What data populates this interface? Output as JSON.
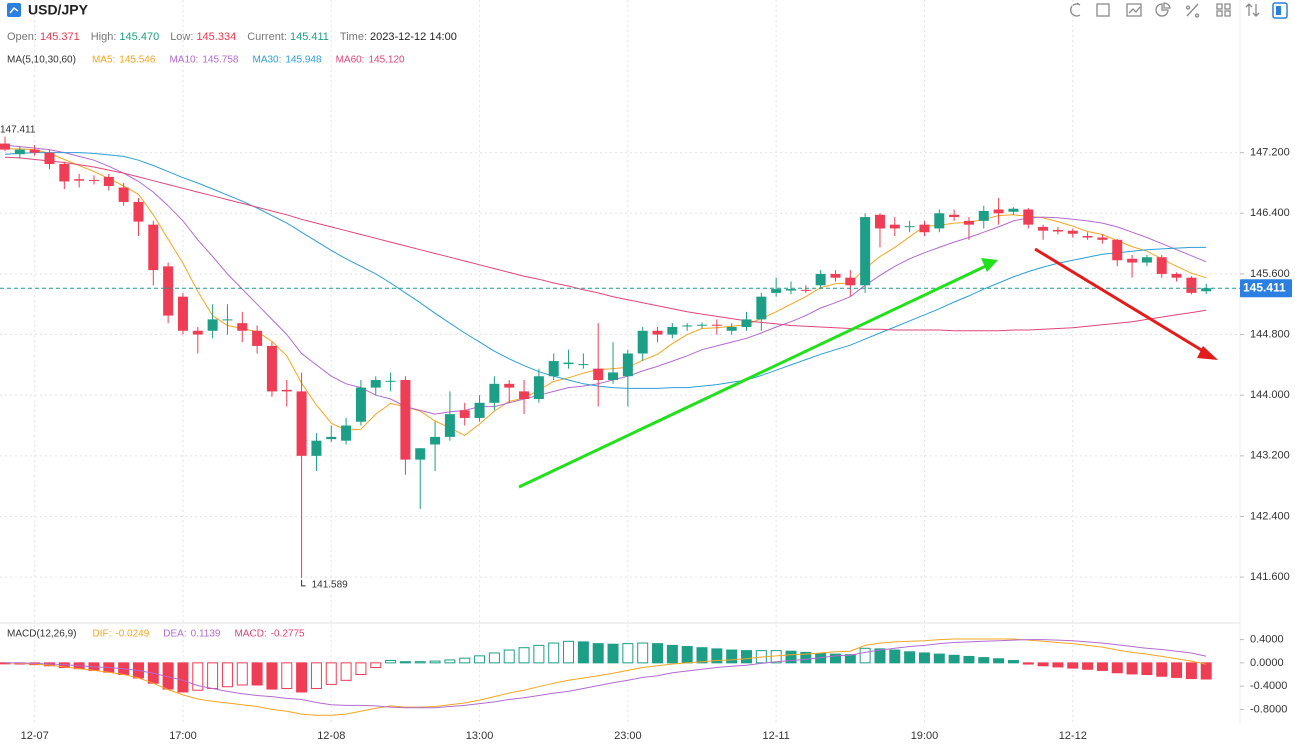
{
  "chart_data": {
    "type": "candlestick",
    "title": "USD/JPY",
    "readout": [
      {
        "name": "Open:",
        "value": 145.371,
        "color": "#e8384f"
      },
      {
        "name": "High:",
        "value": 145.47,
        "label": "145.470",
        "color": "#1d9e87"
      },
      {
        "name": "Low:",
        "value": 145.334,
        "color": "#e8384f"
      },
      {
        "name": "Current:",
        "value": 145.411,
        "color": "#1d9e87"
      },
      {
        "name": "Time:",
        "value": "2023-12-12 14:00",
        "color": "#222222"
      }
    ],
    "categories": [
      null,
      null,
      "12-07",
      null,
      null,
      null,
      null,
      null,
      null,
      null,
      null,
      null,
      "17:00",
      null,
      null,
      null,
      null,
      null,
      null,
      null,
      null,
      null,
      "12-08",
      null,
      null,
      null,
      null,
      null,
      null,
      null,
      null,
      null,
      "13:00",
      null,
      null,
      null,
      null,
      null,
      null,
      null,
      null,
      null,
      "23:00",
      null,
      null,
      null,
      null,
      null,
      null,
      null,
      null,
      null,
      "12-11",
      null,
      null,
      null,
      null,
      null,
      null,
      null,
      null,
      null,
      "19:00",
      null,
      null,
      null,
      null,
      null,
      null,
      null,
      null,
      null,
      "12-12",
      null,
      null,
      null,
      null,
      null,
      null,
      null,
      null,
      null
    ],
    "open": [
      147.32,
      147.18,
      147.24,
      147.2,
      147.05,
      146.85,
      146.84,
      146.88,
      146.74,
      146.55,
      146.25,
      145.7,
      145.3,
      144.85,
      144.85,
      144.99,
      144.95,
      144.85,
      144.65,
      144.07,
      144.05,
      143.2,
      143.42,
      143.4,
      143.65,
      144.1,
      144.18,
      144.2,
      143.15,
      143.35,
      143.45,
      143.8,
      143.7,
      143.9,
      144.15,
      144.05,
      143.95,
      144.25,
      144.41,
      144.4,
      144.35,
      144.2,
      144.25,
      144.55,
      144.85,
      144.8,
      144.91,
      144.92,
      144.93,
      144.85,
      144.9,
      145.0,
      145.35,
      145.38,
      145.39,
      145.45,
      145.6,
      145.55,
      145.45,
      146.38,
      146.25,
      146.22,
      146.25,
      146.2,
      146.38,
      146.3,
      146.3,
      146.45,
      146.42,
      146.45,
      146.22,
      146.18,
      146.17,
      146.1,
      146.08,
      146.05,
      145.8,
      145.75,
      145.82,
      145.6,
      145.55,
      145.371
    ],
    "high": [
      147.411,
      147.28,
      147.3,
      147.24,
      147.08,
      146.92,
      146.9,
      146.92,
      146.8,
      146.6,
      146.3,
      145.75,
      145.35,
      144.9,
      145.2,
      145.2,
      145.1,
      144.92,
      144.7,
      144.2,
      144.3,
      143.5,
      143.6,
      143.7,
      144.2,
      144.25,
      144.3,
      144.25,
      143.3,
      143.65,
      144.05,
      143.9,
      144.0,
      144.25,
      144.2,
      144.2,
      144.35,
      144.55,
      144.6,
      144.55,
      144.95,
      144.7,
      144.6,
      144.9,
      144.9,
      144.95,
      144.95,
      144.96,
      145.0,
      144.95,
      145.1,
      145.35,
      145.55,
      145.5,
      145.45,
      145.65,
      145.65,
      145.65,
      146.4,
      146.4,
      146.35,
      146.3,
      146.3,
      146.45,
      146.45,
      146.35,
      146.5,
      146.6,
      146.48,
      146.47,
      146.25,
      146.22,
      146.2,
      146.15,
      146.12,
      146.06,
      145.85,
      145.85,
      145.85,
      145.62,
      145.57,
      145.47
    ],
    "low": [
      147.22,
      147.12,
      147.16,
      146.98,
      146.72,
      146.74,
      146.78,
      146.7,
      146.5,
      146.1,
      145.45,
      144.95,
      144.8,
      144.55,
      144.75,
      144.8,
      144.7,
      144.55,
      143.98,
      143.85,
      141.589,
      143.0,
      143.38,
      143.35,
      143.6,
      144.0,
      144.05,
      142.95,
      142.5,
      143.0,
      143.4,
      143.6,
      143.65,
      143.8,
      143.9,
      143.75,
      143.9,
      144.2,
      144.35,
      144.35,
      143.85,
      144.15,
      143.85,
      144.45,
      144.7,
      144.75,
      144.85,
      144.88,
      144.8,
      144.8,
      144.85,
      144.85,
      145.3,
      145.33,
      145.35,
      145.4,
      145.5,
      145.3,
      145.35,
      145.95,
      146.1,
      146.15,
      146.1,
      146.15,
      146.3,
      146.05,
      146.2,
      146.25,
      146.38,
      146.2,
      146.05,
      146.12,
      146.08,
      146.05,
      146.0,
      145.7,
      145.55,
      145.7,
      145.55,
      145.5,
      145.33,
      145.334
    ],
    "close": [
      147.24,
      147.24,
      147.2,
      147.05,
      146.82,
      146.83,
      146.83,
      146.76,
      146.55,
      146.29,
      145.65,
      145.05,
      144.85,
      144.8,
      145.0,
      145.0,
      144.85,
      144.65,
      144.05,
      144.05,
      143.2,
      143.4,
      143.45,
      143.6,
      144.1,
      144.2,
      144.19,
      143.15,
      143.3,
      143.45,
      143.75,
      143.7,
      143.9,
      144.15,
      144.1,
      143.95,
      144.25,
      144.45,
      144.43,
      144.41,
      144.2,
      144.3,
      144.55,
      144.85,
      144.8,
      144.9,
      144.92,
      144.93,
      144.92,
      144.9,
      145.0,
      145.3,
      145.4,
      145.4,
      145.38,
      145.6,
      145.55,
      145.45,
      146.35,
      146.2,
      146.2,
      146.23,
      146.15,
      146.4,
      146.35,
      146.25,
      146.43,
      146.4,
      146.46,
      146.25,
      146.17,
      146.16,
      146.13,
      146.08,
      146.05,
      145.78,
      145.75,
      145.82,
      145.6,
      145.55,
      145.35,
      145.411
    ],
    "up_color": "#1d9e87",
    "down_color": "#ef3d55",
    "ylim": [
      141.1,
      148.95
    ],
    "yticks": [
      {
        "value": 147.2,
        "label": "147.200"
      },
      {
        "value": 146.4,
        "label": "146.400"
      },
      {
        "value": 145.6,
        "label": "145.600"
      },
      {
        "value": 144.8,
        "label": "144.800"
      },
      {
        "value": 144.0,
        "label": "144.000"
      },
      {
        "value": 143.2,
        "label": "143.200"
      },
      {
        "value": 142.4,
        "label": "142.400"
      },
      {
        "value": 141.6,
        "label": "141.600"
      }
    ],
    "grid": true,
    "ma_label": "MA(5,10,30,60)",
    "series": [
      {
        "name": "MA5:",
        "color": "#f5a623",
        "legend_value": 145.546,
        "values": [
          147.25,
          147.25,
          147.24,
          147.19,
          147.11,
          147.03,
          146.95,
          146.86,
          146.76,
          146.65,
          146.38,
          146.06,
          145.74,
          145.37,
          145.05,
          144.92,
          144.88,
          144.84,
          144.71,
          144.52,
          144.16,
          143.87,
          143.63,
          143.54,
          143.55,
          143.75,
          143.89,
          143.85,
          143.79,
          143.66,
          143.57,
          143.47,
          143.62,
          143.79,
          143.92,
          143.96,
          144.07,
          144.18,
          144.23,
          144.29,
          144.34,
          144.35,
          144.37,
          144.46,
          144.54,
          144.68,
          144.8,
          144.88,
          144.89,
          144.91,
          144.93,
          145.01,
          145.1,
          145.2,
          145.3,
          145.42,
          145.47,
          145.48,
          145.67,
          145.83,
          145.95,
          146.09,
          146.23,
          146.24,
          146.27,
          146.28,
          146.32,
          146.37,
          146.38,
          146.36,
          146.34,
          146.29,
          146.23,
          146.16,
          146.12,
          146.04,
          145.96,
          145.9,
          145.8,
          145.7,
          145.61,
          145.55
        ]
      },
      {
        "name": "MA10:",
        "color": "#b36bd1",
        "legend_value": 145.758,
        "values": [
          147.3,
          147.28,
          147.26,
          147.24,
          147.2,
          147.15,
          147.1,
          147.02,
          146.93,
          146.82,
          146.68,
          146.5,
          146.3,
          146.05,
          145.83,
          145.6,
          145.4,
          145.2,
          145.0,
          144.8,
          144.55,
          144.4,
          144.25,
          144.15,
          144.1,
          144.0,
          143.95,
          143.85,
          143.8,
          143.75,
          143.78,
          143.8,
          143.85,
          143.85,
          143.9,
          143.95,
          144.0,
          144.05,
          144.1,
          144.12,
          144.15,
          144.2,
          144.25,
          144.32,
          144.38,
          144.45,
          144.52,
          144.6,
          144.65,
          144.7,
          144.75,
          144.82,
          144.9,
          144.97,
          145.05,
          145.15,
          145.22,
          145.3,
          145.45,
          145.58,
          145.7,
          145.8,
          145.88,
          145.95,
          146.02,
          146.08,
          146.15,
          146.22,
          146.3,
          146.34,
          146.35,
          146.34,
          146.32,
          146.3,
          146.27,
          146.22,
          146.15,
          146.08,
          146.0,
          145.92,
          145.84,
          145.76
        ]
      },
      {
        "name": "MA30:",
        "color": "#2e9fd8",
        "legend_value": 145.948,
        "values": [
          147.18,
          147.19,
          147.2,
          147.2,
          147.2,
          147.2,
          147.19,
          147.17,
          147.15,
          147.1,
          147.03,
          146.95,
          146.87,
          146.8,
          146.72,
          146.64,
          146.56,
          146.47,
          146.37,
          146.27,
          146.15,
          146.03,
          145.91,
          145.8,
          145.7,
          145.6,
          145.48,
          145.35,
          145.22,
          145.08,
          144.95,
          144.82,
          144.7,
          144.58,
          144.48,
          144.39,
          144.31,
          144.25,
          144.2,
          144.15,
          144.12,
          144.1,
          144.09,
          144.09,
          144.09,
          144.1,
          144.1,
          144.12,
          144.14,
          144.17,
          144.2,
          144.26,
          144.33,
          144.4,
          144.47,
          144.54,
          144.6,
          144.66,
          144.74,
          144.82,
          144.9,
          144.98,
          145.06,
          145.14,
          145.23,
          145.31,
          145.4,
          145.48,
          145.56,
          145.63,
          145.69,
          145.74,
          145.78,
          145.82,
          145.86,
          145.88,
          145.9,
          145.92,
          145.93,
          145.94,
          145.95,
          145.95
        ]
      },
      {
        "name": "MA60:",
        "color": "#e0457b",
        "legend_value": {
          "value": 145.12,
          "label": "145.120"
        },
        "values": [
          147.14,
          147.13,
          147.11,
          147.09,
          147.07,
          147.04,
          147.01,
          146.97,
          146.93,
          146.88,
          146.83,
          146.78,
          146.73,
          146.68,
          146.63,
          146.58,
          146.53,
          146.48,
          146.43,
          146.38,
          146.32,
          146.27,
          146.22,
          146.17,
          146.12,
          146.07,
          146.02,
          145.97,
          145.92,
          145.87,
          145.82,
          145.77,
          145.72,
          145.67,
          145.62,
          145.57,
          145.53,
          145.48,
          145.44,
          145.39,
          145.35,
          145.3,
          145.26,
          145.22,
          145.18,
          145.14,
          145.1,
          145.07,
          145.04,
          145.01,
          144.98,
          144.96,
          144.94,
          144.92,
          144.91,
          144.9,
          144.89,
          144.88,
          144.87,
          144.87,
          144.86,
          144.86,
          144.86,
          144.86,
          144.85,
          144.85,
          144.85,
          144.85,
          144.86,
          144.86,
          144.87,
          144.88,
          144.89,
          144.91,
          144.93,
          144.95,
          144.97,
          145.0,
          145.03,
          145.06,
          145.09,
          145.12
        ]
      }
    ],
    "indicator": {
      "type": "macd",
      "label": "MACD(12,26,9)",
      "ylim": [
        -1.05,
        0.65
      ],
      "yticks": [
        {
          "value": 0.4,
          "label": "0.4000"
        },
        {
          "value": 0,
          "label": "0.0000"
        },
        {
          "value": -0.4,
          "label": "-0.4000"
        },
        {
          "value": -0.8,
          "label": "-0.8000"
        }
      ],
      "series": [
        {
          "name": "DIF:",
          "color": "#f5a623",
          "legend_value": -0.0249,
          "values": [
            0.0,
            -0.01,
            -0.02,
            -0.04,
            -0.07,
            -0.1,
            -0.13,
            -0.16,
            -0.2,
            -0.26,
            -0.35,
            -0.46,
            -0.55,
            -0.62,
            -0.66,
            -0.69,
            -0.72,
            -0.75,
            -0.8,
            -0.83,
            -0.88,
            -0.9,
            -0.9,
            -0.88,
            -0.83,
            -0.78,
            -0.74,
            -0.76,
            -0.76,
            -0.75,
            -0.72,
            -0.69,
            -0.64,
            -0.58,
            -0.52,
            -0.47,
            -0.41,
            -0.35,
            -0.3,
            -0.26,
            -0.22,
            -0.18,
            -0.13,
            -0.08,
            -0.05,
            -0.02,
            0.0,
            0.02,
            0.04,
            0.05,
            0.07,
            0.1,
            0.12,
            0.14,
            0.15,
            0.17,
            0.19,
            0.2,
            0.3,
            0.34,
            0.36,
            0.37,
            0.38,
            0.4,
            0.41,
            0.41,
            0.41,
            0.41,
            0.41,
            0.39,
            0.37,
            0.35,
            0.33,
            0.3,
            0.27,
            0.22,
            0.18,
            0.15,
            0.11,
            0.07,
            0.03,
            -0.0249
          ]
        },
        {
          "name": "DEA:",
          "color": "#b36bd1",
          "legend_value": 0.1139,
          "values": [
            0.0,
            0.0,
            -0.01,
            -0.02,
            -0.03,
            -0.05,
            -0.07,
            -0.08,
            -0.1,
            -0.13,
            -0.18,
            -0.24,
            -0.3,
            -0.39,
            -0.44,
            -0.49,
            -0.53,
            -0.56,
            -0.58,
            -0.61,
            -0.63,
            -0.68,
            -0.72,
            -0.73,
            -0.73,
            -0.74,
            -0.76,
            -0.77,
            -0.77,
            -0.77,
            -0.75,
            -0.73,
            -0.7,
            -0.67,
            -0.63,
            -0.6,
            -0.56,
            -0.52,
            -0.49,
            -0.44,
            -0.39,
            -0.34,
            -0.3,
            -0.25,
            -0.22,
            -0.17,
            -0.14,
            -0.11,
            -0.08,
            -0.06,
            -0.04,
            -0.01,
            0.02,
            0.04,
            0.06,
            0.09,
            0.12,
            0.13,
            0.18,
            0.22,
            0.25,
            0.28,
            0.3,
            0.33,
            0.35,
            0.36,
            0.37,
            0.38,
            0.39,
            0.4,
            0.4,
            0.39,
            0.38,
            0.36,
            0.34,
            0.31,
            0.28,
            0.25,
            0.23,
            0.2,
            0.17,
            0.1139
          ]
        }
      ],
      "histogram": {
        "name": "MACD:",
        "color": "#e0457b",
        "legend_value": -0.2775,
        "up_color": "#1d9e87",
        "down_color": "#ef3d55",
        "values": [
          -0.01,
          -0.02,
          -0.03,
          -0.05,
          -0.08,
          -0.1,
          -0.13,
          -0.16,
          -0.2,
          -0.26,
          -0.35,
          -0.45,
          -0.5,
          -0.47,
          -0.44,
          -0.41,
          -0.38,
          -0.38,
          -0.45,
          -0.44,
          -0.5,
          -0.44,
          -0.37,
          -0.3,
          -0.2,
          -0.08,
          0.04,
          0.02,
          0.02,
          0.03,
          0.05,
          0.08,
          0.12,
          0.17,
          0.22,
          0.26,
          0.3,
          0.34,
          0.37,
          0.36,
          0.33,
          0.32,
          0.33,
          0.34,
          0.33,
          0.3,
          0.28,
          0.26,
          0.24,
          0.22,
          0.21,
          0.21,
          0.21,
          0.2,
          0.18,
          0.16,
          0.15,
          0.14,
          0.25,
          0.24,
          0.22,
          0.19,
          0.17,
          0.15,
          0.13,
          0.11,
          0.09,
          0.07,
          0.04,
          -0.02,
          -0.05,
          -0.07,
          -0.09,
          -0.11,
          -0.13,
          -0.17,
          -0.19,
          -0.2,
          -0.23,
          -0.25,
          -0.27,
          -0.2775
        ]
      }
    }
  }
}
